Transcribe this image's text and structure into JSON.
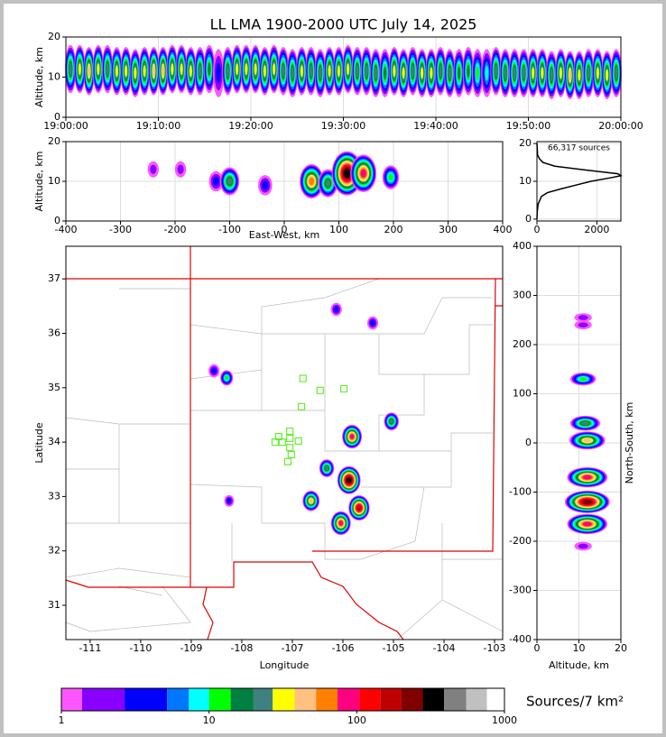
{
  "chart_data": [
    {
      "type": "time-height",
      "title": "LL LMA 1900-2000 UTC July 14, 2025",
      "ylabel": "Altitude, km",
      "grid": true,
      "xlim": [
        0,
        60
      ],
      "xticks": [
        {
          "value": 0,
          "label": "19:00:00"
        },
        {
          "value": 10,
          "label": "19:10:00"
        },
        {
          "value": 20,
          "label": "19:20:00"
        },
        {
          "value": 30,
          "label": "19:30:00"
        },
        {
          "value": 40,
          "label": "19:40:00"
        },
        {
          "value": 50,
          "label": "19:50:00"
        },
        {
          "value": 60,
          "label": "20:00:00"
        }
      ],
      "ylim": [
        0,
        20
      ],
      "yticks": [
        0,
        10,
        20
      ],
      "x": [
        0.5,
        1.5,
        2.5,
        3.5,
        4.5,
        5.5,
        6.5,
        7.5,
        8.5,
        9.5,
        10.5,
        11.5,
        12.5,
        13.5,
        14.5,
        15.5,
        16.5,
        17.5,
        18.5,
        19.5,
        20.5,
        21.5,
        22.5,
        23.5,
        24.5,
        25.5,
        26.5,
        27.5,
        28.5,
        29.5,
        30.5,
        31.5,
        32.5,
        33.5,
        34.5,
        35.5,
        36.5,
        37.5,
        38.5,
        39.5,
        40.5,
        41.5,
        42.5,
        43.5,
        44.5,
        45.5,
        46.5,
        47.5,
        48.5,
        49.5,
        50.5,
        51.5,
        52.5,
        53.5,
        54.5,
        55.5,
        56.5,
        57.5,
        58.5,
        59.5
      ],
      "values": [
        12,
        12,
        11.5,
        12,
        12,
        11.5,
        11.5,
        11,
        11.5,
        11.5,
        11.5,
        12,
        12,
        11.5,
        11.5,
        12,
        11,
        11.5,
        12,
        12,
        12,
        11.5,
        12,
        11.5,
        11,
        11.5,
        11.5,
        11,
        11.5,
        11.5,
        12,
        11.5,
        11.5,
        11,
        11,
        11.5,
        11,
        11.5,
        11,
        11,
        11.5,
        11,
        11,
        11.5,
        11,
        11,
        11.5,
        11,
        11,
        11,
        11,
        11,
        10.5,
        11,
        10.5,
        10.5,
        11,
        11,
        10.5,
        11
      ],
      "density": [
        20,
        30,
        40,
        30,
        25,
        30,
        35,
        30,
        30,
        40,
        40,
        35,
        30,
        30,
        25,
        15,
        5,
        20,
        30,
        30,
        35,
        30,
        30,
        25,
        20,
        30,
        25,
        20,
        30,
        35,
        30,
        25,
        20,
        20,
        15,
        30,
        30,
        25,
        30,
        30,
        25,
        20,
        15,
        15,
        10,
        8,
        20,
        25,
        20,
        20,
        30,
        30,
        25,
        30,
        40,
        30,
        25,
        30,
        30,
        25
      ]
    },
    {
      "type": "blobs",
      "xlabel": "East-West, km",
      "ylabel": "Altitude, km",
      "grid": true,
      "xlim": [
        -400,
        400
      ],
      "xticks": [
        -400,
        -300,
        -200,
        -100,
        0,
        100,
        200,
        300,
        400
      ],
      "ylim": [
        0,
        20
      ],
      "yticks": [
        0,
        10,
        20
      ],
      "x": [
        -240,
        -190,
        -125,
        -100,
        -35,
        50,
        80,
        115,
        145,
        195
      ],
      "values": [
        13,
        13,
        10,
        10,
        9,
        10,
        9.5,
        12,
        12,
        11
      ],
      "density": [
        2,
        2,
        5,
        20,
        5,
        60,
        20,
        300,
        100,
        10
      ]
    },
    {
      "type": "profile",
      "annotation": "66,317 sources",
      "grid": true,
      "xlim": [
        0,
        2800
      ],
      "xticks": [
        0,
        2000
      ],
      "ylim": [
        -0.5,
        20.5
      ],
      "yticks": [
        0,
        10,
        20
      ],
      "x": [
        0,
        10,
        40,
        150,
        350,
        800,
        1300,
        1800,
        2500,
        2800,
        2700,
        1600,
        600,
        200,
        80,
        20,
        0
      ],
      "values": [
        0,
        2,
        4,
        6,
        7,
        8,
        9,
        10,
        11,
        11.5,
        12,
        13,
        14,
        15,
        16,
        17,
        20
      ]
    },
    {
      "type": "map",
      "xlabel": "Longitude",
      "ylabel": "Latitude",
      "grid": false,
      "xlim": [
        -111.48,
        -102.84
      ],
      "xticks": [
        -111,
        -110,
        -109,
        -108,
        -107,
        -106,
        -105,
        -104,
        -103
      ],
      "ylim": [
        30.37,
        37.6
      ],
      "yticks": [
        31,
        32,
        33,
        34,
        35,
        36,
        37
      ],
      "x": [
        -105.88,
        -105.68,
        -106.04,
        -105.82,
        -106.63,
        -106.32,
        -105.04,
        -108.3,
        -106.13,
        -105.41,
        -108.25,
        -108.55
      ],
      "values": [
        33.3,
        32.79,
        32.51,
        34.1,
        32.92,
        33.52,
        34.38,
        35.18,
        36.44,
        36.19,
        32.92,
        35.31
      ],
      "density": [
        300,
        150,
        100,
        100,
        40,
        20,
        20,
        10,
        5,
        5,
        3,
        5
      ],
      "stations": {
        "color": "#66ee33",
        "x": [
          -106.79,
          -106.45,
          -105.98,
          -106.82,
          -107.27,
          -107.34,
          -107.2,
          -107.05,
          -107.05,
          -106.88,
          -107.05,
          -107.02,
          -107.09
        ],
        "values": [
          35.17,
          34.95,
          34.98,
          34.65,
          34.1,
          34.0,
          34.0,
          34.2,
          34.07,
          34.02,
          33.9,
          33.77,
          33.64
        ]
      }
    },
    {
      "type": "blobs",
      "xlabel": "Altitude, km",
      "ylabel": "North-South, km",
      "grid": true,
      "xlim": [
        0,
        20
      ],
      "xticks": [
        0,
        10,
        20
      ],
      "ylim": [
        -400,
        400
      ],
      "yticks": [
        -400,
        -300,
        -200,
        -100,
        0,
        100,
        200,
        300,
        400
      ],
      "x": [
        11,
        11.5,
        12,
        12,
        12,
        12,
        11,
        11,
        11
      ],
      "values": [
        130,
        40,
        5,
        -70,
        -120,
        -165,
        255,
        -210,
        240
      ],
      "density": [
        10,
        20,
        50,
        100,
        200,
        100,
        2,
        2,
        2
      ]
    },
    {
      "type": "colorbar",
      "label": "Sources/7 km²",
      "log_scale": true,
      "xlim": [
        1,
        1000
      ],
      "xticks": [
        1,
        10,
        100,
        1000
      ],
      "bins": [
        1,
        1.38,
        2.68,
        5.2,
        7.3,
        10,
        14,
        20,
        27,
        38,
        53,
        74,
        104,
        144,
        200,
        280,
        390,
        550,
        760,
        1000
      ],
      "colors": [
        "#ff55ff",
        "#8800ff",
        "#0000ff",
        "#0077ff",
        "#00ffff",
        "#00ff00",
        "#008040",
        "#408080",
        "#ffff00",
        "#ffc080",
        "#ff8000",
        "#ff0080",
        "#ff0000",
        "#c00000",
        "#800000",
        "#000000",
        "#808080",
        "#c0c0c0",
        "#ffffff"
      ]
    }
  ]
}
